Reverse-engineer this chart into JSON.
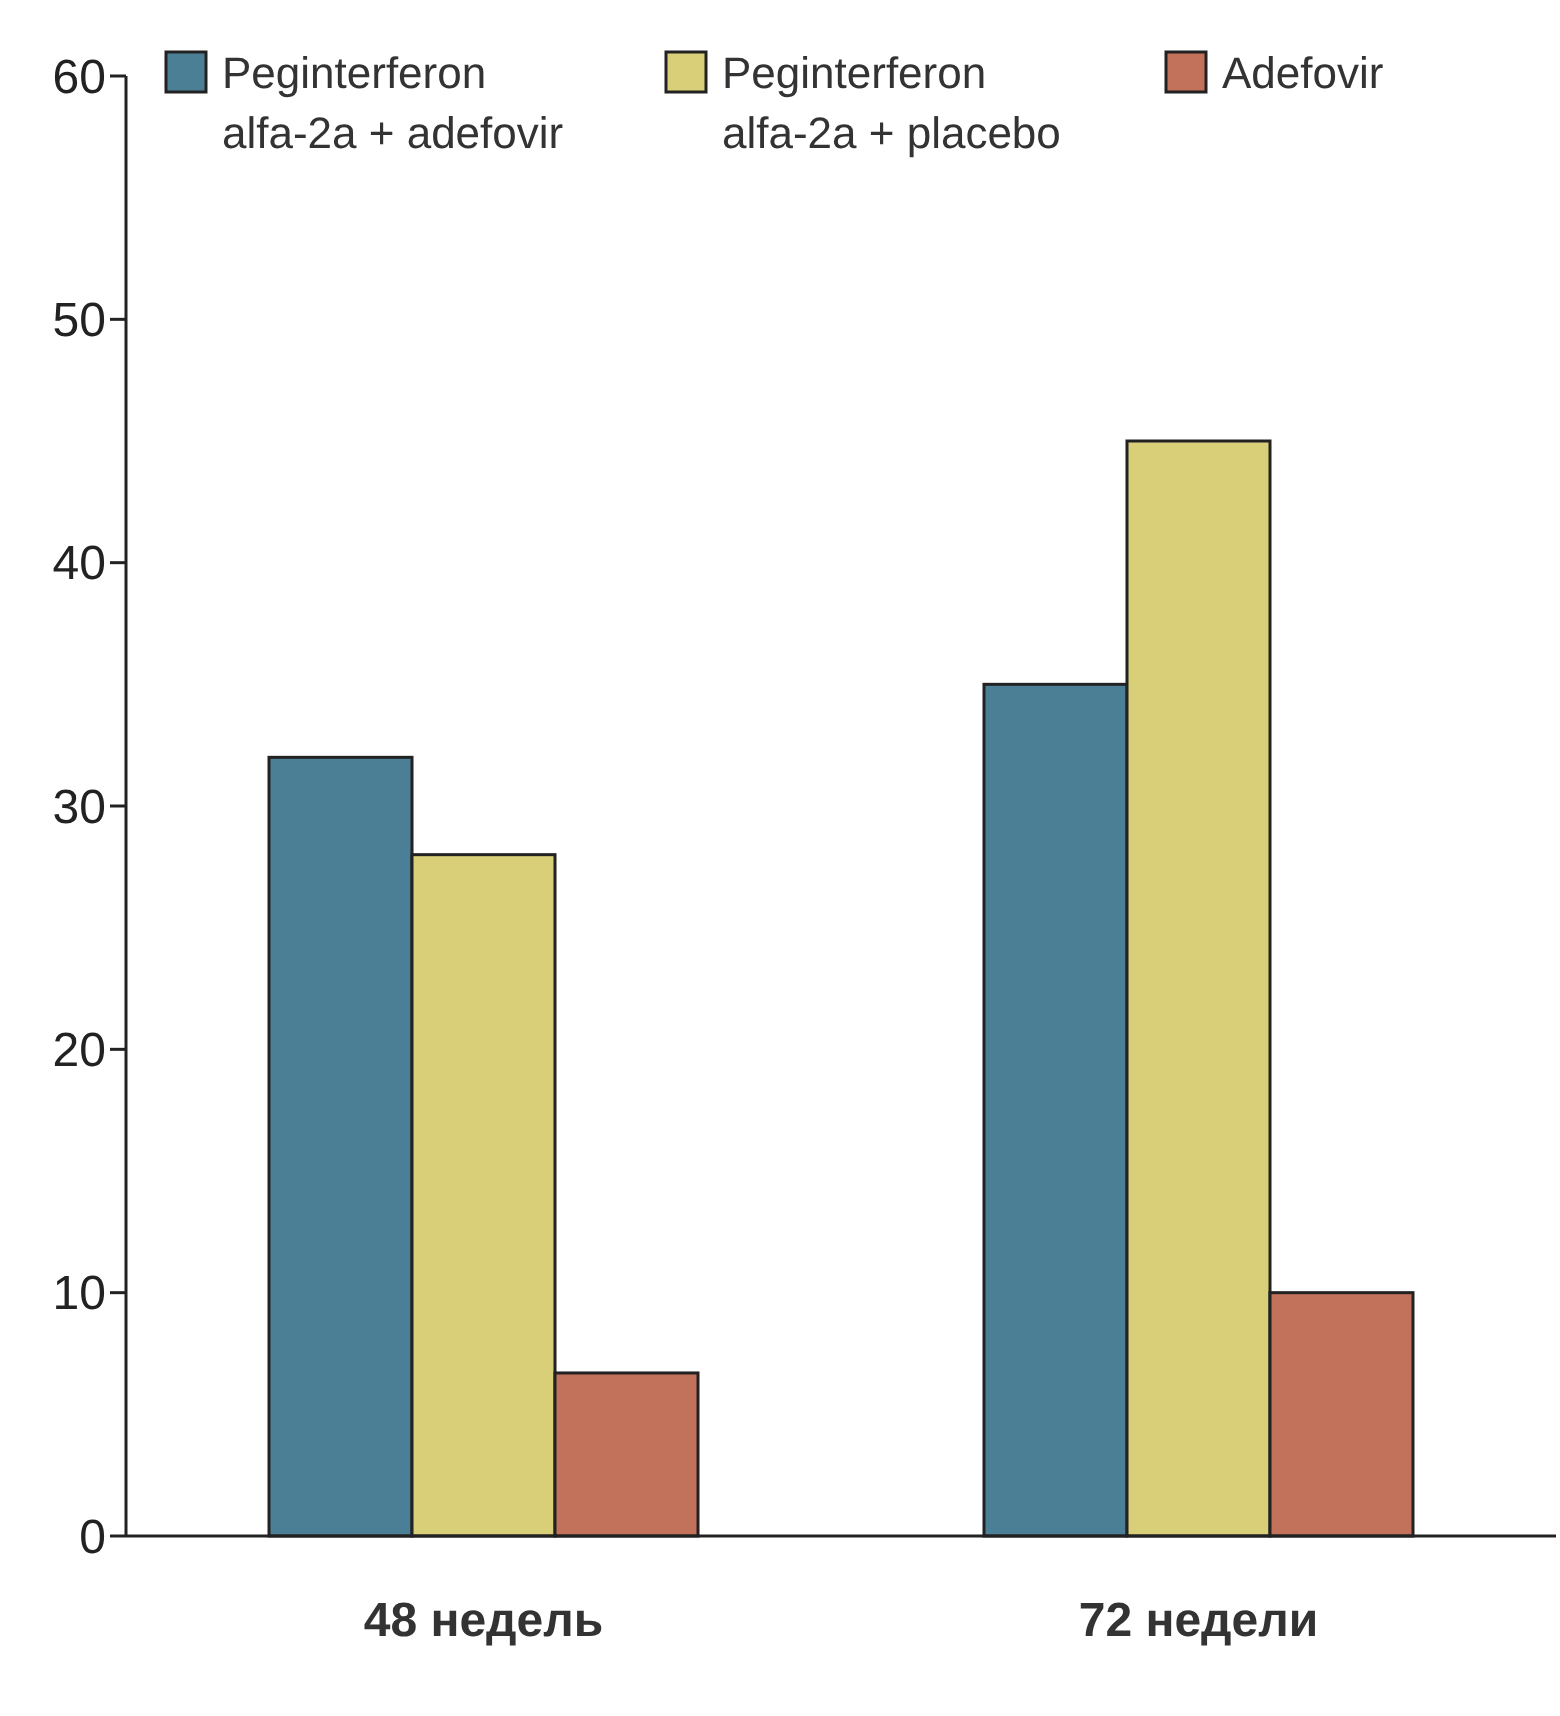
{
  "chart_data": {
    "type": "bar",
    "categories": [
      "48 недель",
      "72 недели"
    ],
    "series": [
      {
        "name": "Peginterferon alfa-2a + adefovir",
        "color": "#4a7f96",
        "values": [
          32,
          35
        ]
      },
      {
        "name": "Peginterferon alfa-2a + placebo",
        "color": "#d8cf78",
        "values": [
          28,
          45
        ]
      },
      {
        "name": "Adefovir",
        "color": "#c2715b",
        "values": [
          6.7,
          10
        ]
      }
    ],
    "ylim": [
      0,
      60
    ],
    "yticks": [
      0,
      10,
      20,
      30,
      40,
      50,
      60
    ],
    "legend": "top",
    "grid": false
  }
}
